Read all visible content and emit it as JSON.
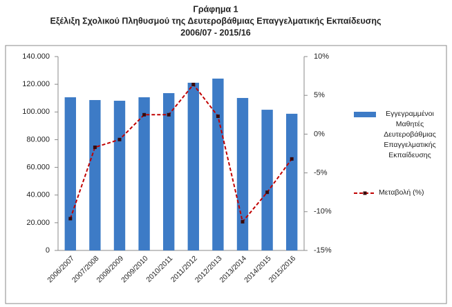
{
  "chart_data": {
    "type": "bar",
    "title_lines": [
      "Γράφημα 1",
      "Εξέλιξη Σχολικού Πληθυσμού της Δευτεροβάθμιας Επαγγελματικής Εκπαίδευσης",
      "2006/07 - 2015/16"
    ],
    "categories": [
      "2006/2007",
      "2007/2008",
      "2008/2009",
      "2009/2010",
      "2010/2011",
      "2011/2012",
      "2012/2013",
      "2013/2014",
      "2014/2015",
      "2015/2016"
    ],
    "series": [
      {
        "name": "Εγγεγραμμένοι Μαθητές Δευτεροβάθμιας Επαγγελματικής Εκπαίδευσης",
        "type": "bar",
        "color": "#3d7bc6",
        "values": [
          110600,
          108600,
          108100,
          110600,
          113600,
          121100,
          124100,
          110100,
          101600,
          98700
        ]
      },
      {
        "name": "Μεταβολή (%)",
        "type": "line",
        "axis": "y2",
        "color": "#c00000",
        "values": [
          -10.9,
          -1.7,
          -0.7,
          2.5,
          2.5,
          6.4,
          2.3,
          -11.3,
          -7.5,
          -3.2
        ]
      }
    ],
    "ylim": [
      0,
      140000
    ],
    "yticks": [
      {
        "value": 0,
        "label": "0"
      },
      {
        "value": 20000,
        "label": "20.000"
      },
      {
        "value": 40000,
        "label": "40.000"
      },
      {
        "value": 60000,
        "label": "60.000"
      },
      {
        "value": 80000,
        "label": "80.000"
      },
      {
        "value": 100000,
        "label": "100.000"
      },
      {
        "value": 120000,
        "label": "120.000"
      },
      {
        "value": 140000,
        "label": "140.000"
      }
    ],
    "y2lim": [
      -15,
      10
    ],
    "y2ticks": [
      {
        "value": -15,
        "label": "-15%"
      },
      {
        "value": -10,
        "label": "-10%"
      },
      {
        "value": -5,
        "label": "-5%"
      },
      {
        "value": 0,
        "label": "0%"
      },
      {
        "value": 5,
        "label": "5%"
      },
      {
        "value": 10,
        "label": "10%"
      }
    ],
    "grid": false,
    "legend": "right"
  }
}
